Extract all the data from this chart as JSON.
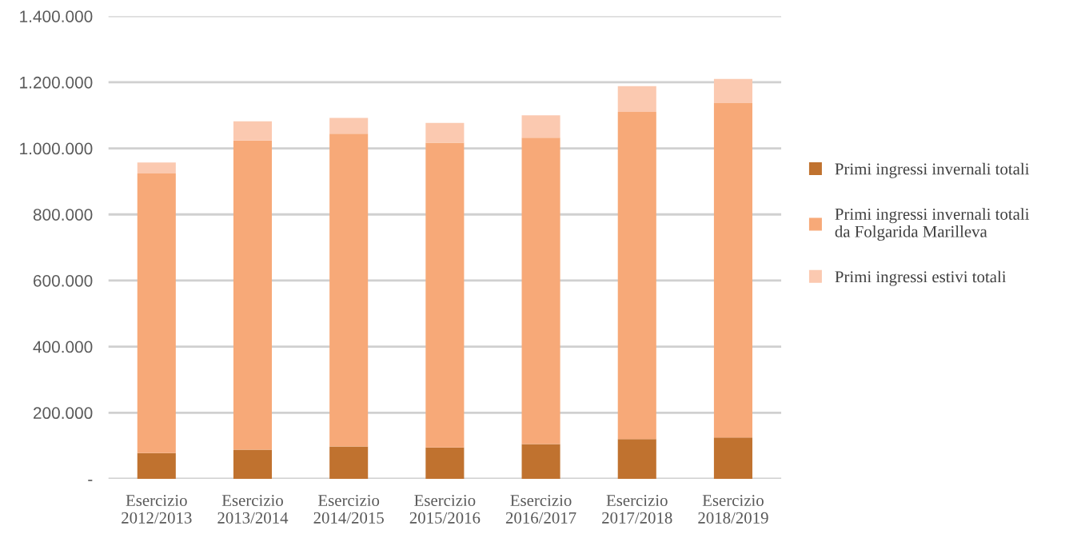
{
  "chart_data": {
    "type": "bar",
    "stacked": true,
    "categories": [
      "Esercizio 2012/2013",
      "Esercizio 2013/2014",
      "Esercizio 2014/2015",
      "Esercizio 2015/2016",
      "Esercizio 2016/2017",
      "Esercizio 2017/2018",
      "Esercizio 2018/2019"
    ],
    "series": [
      {
        "name": "Primi ingressi invernali totali",
        "color": "#c0722f",
        "values": [
          78000,
          88000,
          98000,
          95000,
          105000,
          120000,
          125000
        ]
      },
      {
        "name": "Primi ingressi invernali totali da Folgarida Marilleva",
        "color": "#f7a978",
        "values": [
          846000,
          936000,
          946000,
          922000,
          927000,
          990000,
          1012000
        ]
      },
      {
        "name": "Primi ingressi estivi totali",
        "color": "#fbc9b0",
        "values": [
          33000,
          58000,
          48000,
          60000,
          68000,
          78000,
          73000
        ]
      }
    ],
    "ylim": [
      0,
      1400000
    ],
    "yticks": [
      {
        "value": 0,
        "label": "-"
      },
      {
        "value": 200000,
        "label": "200.000"
      },
      {
        "value": 400000,
        "label": "400.000"
      },
      {
        "value": 600000,
        "label": "600.000"
      },
      {
        "value": 800000,
        "label": "800.000"
      },
      {
        "value": 1000000,
        "label": "1.000.000"
      },
      {
        "value": 1200000,
        "label": "1.200.000"
      },
      {
        "value": 1400000,
        "label": "1.400.000"
      }
    ],
    "grid": "y",
    "legend": "right"
  }
}
